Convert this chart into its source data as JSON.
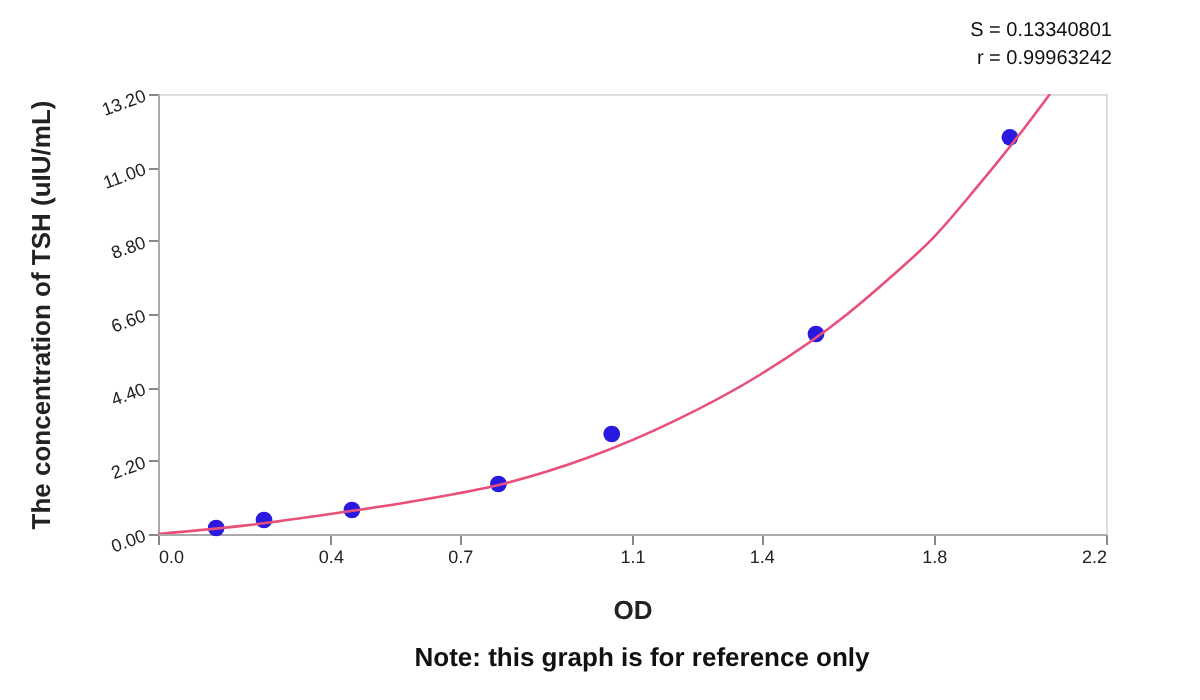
{
  "chart_data": {
    "type": "scatter",
    "xlabel": "OD",
    "ylabel": "The concentration of TSH (uIU/mL)",
    "annotations": [
      "S = 0.13340801",
      "r = 0.99963242",
      "Note: this graph is for reference only"
    ],
    "xlim": [
      0,
      2.2
    ],
    "ylim": [
      0,
      13.2
    ],
    "xticks": [
      {
        "value": 0,
        "label": "0.0"
      },
      0.4,
      0.7,
      1.1,
      1.4,
      1.8,
      2.2
    ],
    "yticks": [
      {
        "value": 0,
        "label": "0.00"
      },
      {
        "value": 2.2,
        "label": "2.20"
      },
      {
        "value": 4.4,
        "label": "4.40"
      },
      {
        "value": 6.6,
        "label": "6.60"
      },
      {
        "value": 8.8,
        "label": "8.80"
      },
      {
        "value": 11,
        "label": "11.00"
      },
      {
        "value": 13.2,
        "label": "13.20"
      }
    ],
    "grid": false,
    "series": [
      {
        "marker": "circle",
        "color": "#2a1adf",
        "x": [
          0.135,
          0.246,
          0.45,
          0.79,
          1.053,
          1.527,
          1.977
        ],
        "values": [
          0.18,
          0.42,
          0.72,
          1.5,
          3.0,
          6.0,
          11.9
        ]
      },
      {
        "type": "line",
        "line_style": "solid",
        "color": "#e8507a",
        "x": [
          0,
          0.2,
          0.4,
          0.6,
          0.8,
          1.0,
          1.2,
          1.4,
          1.6,
          1.7,
          1.8,
          1.9,
          2.0,
          2.07
        ],
        "values": [
          0,
          0.25,
          0.6,
          1.0,
          1.5,
          2.3,
          3.4,
          4.8,
          6.6,
          7.7,
          8.9,
          10.4,
          12.0,
          13.2
        ]
      }
    ]
  }
}
